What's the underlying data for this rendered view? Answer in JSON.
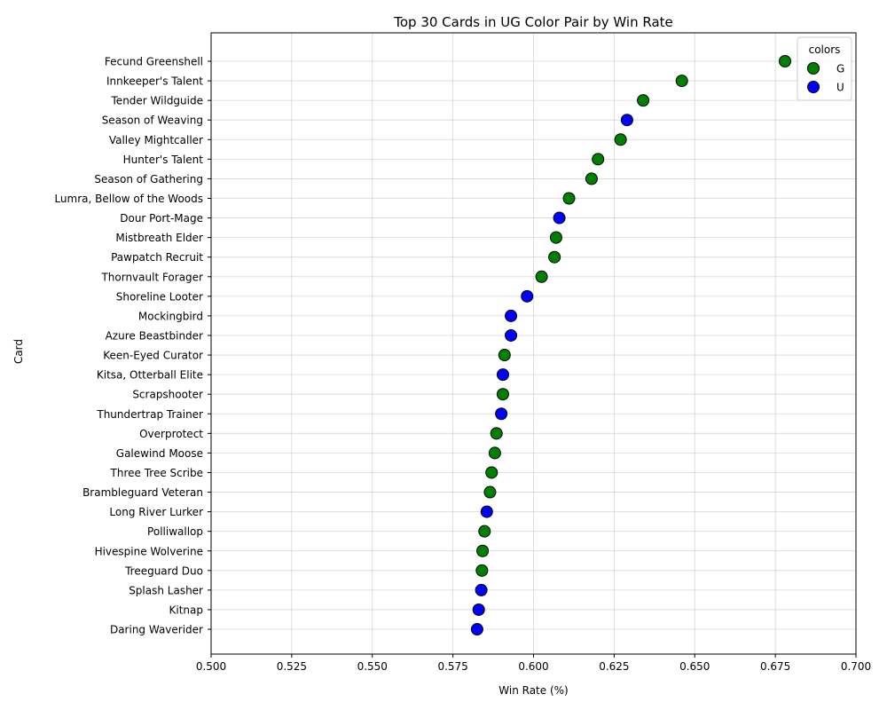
{
  "chart_data": {
    "type": "scatter",
    "title": "Top 30 Cards in UG Color Pair by Win Rate",
    "xlabel": "Win Rate (%)",
    "ylabel": "Card",
    "xlim": [
      0.5,
      0.7
    ],
    "xticks": [
      "0.500",
      "0.525",
      "0.550",
      "0.575",
      "0.600",
      "0.625",
      "0.650",
      "0.675",
      "0.700"
    ],
    "grid": true,
    "legend": {
      "title": "colors",
      "placement": "top-right",
      "entries": [
        {
          "label": "G",
          "color": "#008000"
        },
        {
          "label": "U",
          "color": "#0000ff"
        }
      ]
    },
    "points": [
      {
        "card": "Fecund Greenshell",
        "win_rate": 0.678,
        "color": "G"
      },
      {
        "card": "Innkeeper's Talent",
        "win_rate": 0.646,
        "color": "G"
      },
      {
        "card": "Tender Wildguide",
        "win_rate": 0.634,
        "color": "G"
      },
      {
        "card": "Season of Weaving",
        "win_rate": 0.629,
        "color": "U"
      },
      {
        "card": "Valley Mightcaller",
        "win_rate": 0.627,
        "color": "G"
      },
      {
        "card": "Hunter's Talent",
        "win_rate": 0.62,
        "color": "G"
      },
      {
        "card": "Season of Gathering",
        "win_rate": 0.618,
        "color": "G"
      },
      {
        "card": "Lumra, Bellow of the Woods",
        "win_rate": 0.611,
        "color": "G"
      },
      {
        "card": "Dour Port-Mage",
        "win_rate": 0.608,
        "color": "U"
      },
      {
        "card": "Mistbreath Elder",
        "win_rate": 0.607,
        "color": "G"
      },
      {
        "card": "Pawpatch Recruit",
        "win_rate": 0.6065,
        "color": "G"
      },
      {
        "card": "Thornvault Forager",
        "win_rate": 0.6025,
        "color": "G"
      },
      {
        "card": "Shoreline Looter",
        "win_rate": 0.598,
        "color": "U"
      },
      {
        "card": "Mockingbird",
        "win_rate": 0.593,
        "color": "U"
      },
      {
        "card": "Azure Beastbinder",
        "win_rate": 0.593,
        "color": "U"
      },
      {
        "card": "Keen-Eyed Curator",
        "win_rate": 0.591,
        "color": "G"
      },
      {
        "card": "Kitsa, Otterball Elite",
        "win_rate": 0.5905,
        "color": "U"
      },
      {
        "card": "Scrapshooter",
        "win_rate": 0.5905,
        "color": "G"
      },
      {
        "card": "Thundertrap Trainer",
        "win_rate": 0.59,
        "color": "U"
      },
      {
        "card": "Overprotect",
        "win_rate": 0.5885,
        "color": "G"
      },
      {
        "card": "Galewind Moose",
        "win_rate": 0.588,
        "color": "G"
      },
      {
        "card": "Three Tree Scribe",
        "win_rate": 0.587,
        "color": "G"
      },
      {
        "card": "Brambleguard Veteran",
        "win_rate": 0.5865,
        "color": "G"
      },
      {
        "card": "Long River Lurker",
        "win_rate": 0.5855,
        "color": "U"
      },
      {
        "card": "Polliwallop",
        "win_rate": 0.5848,
        "color": "G"
      },
      {
        "card": "Hivespine Wolverine",
        "win_rate": 0.5842,
        "color": "G"
      },
      {
        "card": "Treeguard Duo",
        "win_rate": 0.584,
        "color": "G"
      },
      {
        "card": "Splash Lasher",
        "win_rate": 0.5838,
        "color": "U"
      },
      {
        "card": "Kitnap",
        "win_rate": 0.583,
        "color": "U"
      },
      {
        "card": "Daring Waverider",
        "win_rate": 0.5825,
        "color": "U"
      }
    ]
  }
}
